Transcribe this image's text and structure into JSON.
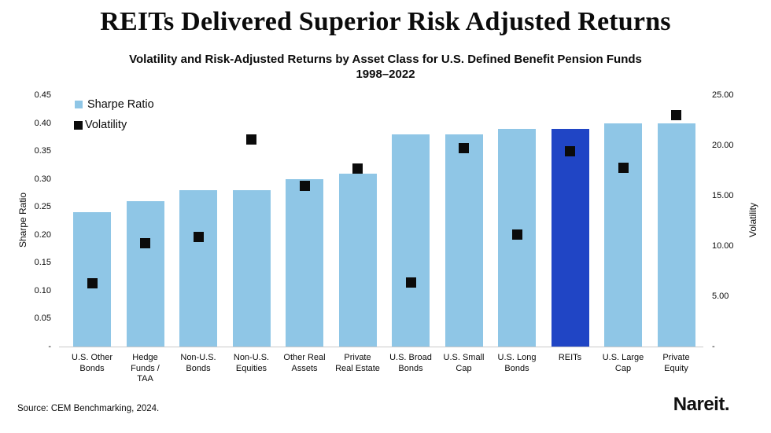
{
  "header": {
    "title": "REITs Delivered Superior Risk Adjusted Returns",
    "subtitle_line1": "Volatility and Risk-Adjusted Returns by Asset Class for U.S. Defined Benefit Pension Funds",
    "subtitle_line2": "1998–2022"
  },
  "footer": {
    "source": "Source: CEM Benchmarking, 2024.",
    "logo": "Nareit."
  },
  "legend": [
    {
      "label": "Sharpe Ratio",
      "color": "#8FC6E6",
      "swatch_size": 10
    },
    {
      "label": "Volatility",
      "color": "#0b0b0b",
      "swatch_size": 11
    }
  ],
  "colors": {
    "bar": "#8FC6E6",
    "highlight_bar": "#2045C5",
    "marker": "#0b0b0b",
    "axis_line": "#c9c9c9"
  },
  "chart_data": {
    "type": "bar",
    "title": "REITs Delivered Superior Risk Adjusted Returns",
    "subtitle": "Volatility and Risk-Adjusted Returns by Asset Class for U.S. Defined Benefit Pension Funds 1998–2022",
    "grid": false,
    "legend_position": "top-left",
    "xlabel": "",
    "left_axis": {
      "label": "Sharpe Ratio",
      "ylim": [
        0,
        0.45
      ],
      "ticks": [
        {
          "label": "0.45",
          "value": 0.45
        },
        {
          "label": "0.40",
          "value": 0.4
        },
        {
          "label": "0.35",
          "value": 0.35
        },
        {
          "label": "0.30",
          "value": 0.3
        },
        {
          "label": "0.25",
          "value": 0.25
        },
        {
          "label": "0.20",
          "value": 0.2
        },
        {
          "label": "0.15",
          "value": 0.15
        },
        {
          "label": "0.10",
          "value": 0.1
        },
        {
          "label": "0.05",
          "value": 0.05
        },
        {
          "label": "-",
          "value": 0
        }
      ]
    },
    "right_axis": {
      "label": "Volatility",
      "ylim": [
        0,
        25
      ],
      "ticks": [
        {
          "label": "25.00",
          "value": 25
        },
        {
          "label": "20.00",
          "value": 20
        },
        {
          "label": "15.00",
          "value": 15
        },
        {
          "label": "10.00",
          "value": 10
        },
        {
          "label": "5.00",
          "value": 5
        },
        {
          "label": "-",
          "value": 0
        }
      ]
    },
    "categories": [
      "U.S. Other\nBonds",
      "Hedge\nFunds /\nTAA",
      "Non-U.S.\nBonds",
      "Non-U.S.\nEquities",
      "Other Real\nAssets",
      "Private\nReal Estate",
      "U.S. Broad\nBonds",
      "U.S. Small\nCap",
      "U.S. Long\nBonds",
      "REITs",
      "U.S. Large\nCap",
      "Private\nEquity"
    ],
    "series": [
      {
        "name": "Sharpe Ratio",
        "type": "bar",
        "axis": "left",
        "values": [
          0.24,
          0.26,
          0.28,
          0.28,
          0.3,
          0.31,
          0.38,
          0.38,
          0.39,
          0.39,
          0.4,
          0.4
        ]
      },
      {
        "name": "Volatility",
        "type": "scatter",
        "marker": "square",
        "axis": "right",
        "values": [
          6.3,
          10.3,
          10.9,
          20.6,
          16.0,
          17.7,
          6.4,
          19.7,
          11.1,
          19.4,
          17.8,
          23.0
        ]
      }
    ],
    "highlight": {
      "category": "REITs",
      "index": 9
    }
  }
}
